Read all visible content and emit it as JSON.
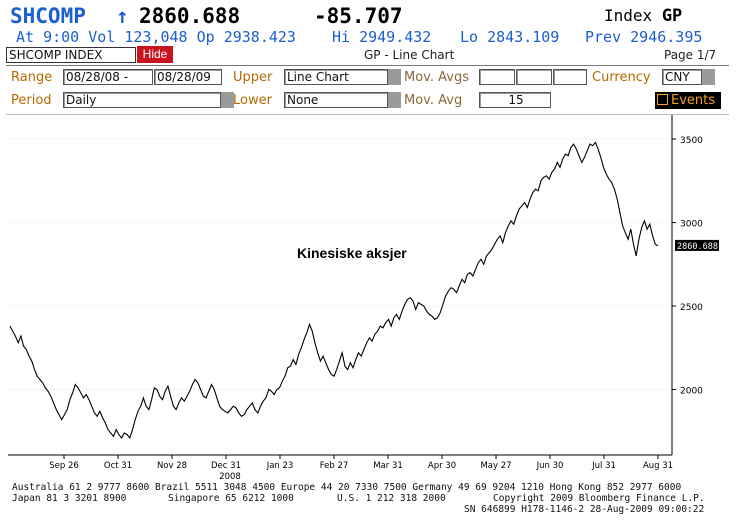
{
  "quote": {
    "ticker": "SHCOMP",
    "arrow": "↑",
    "last": "2860.688",
    "change": "-85.707",
    "index_word": "Index",
    "index_code": "GP",
    "at_label": "At",
    "time": "9:00",
    "vol_label": "Vol",
    "volume": "123,048",
    "op_label": "Op",
    "open": "2938.423",
    "hi_label": "Hi",
    "high": "2949.432",
    "lo_label": "Lo",
    "low": "2843.109",
    "prev_label": "Prev",
    "prev": "2946.395"
  },
  "toolbar": {
    "security": "SHCOMP INDEX",
    "hide_label": "Hide",
    "chart_title": "GP - Line Chart",
    "page": "Page 1/7"
  },
  "settings": {
    "range_label": "Range",
    "range_start": "08/28/08",
    "range_sep": "-",
    "range_end": "08/28/09",
    "upper_label": "Upper",
    "upper_value": "Line Chart",
    "mov_avgs_label": "Mov. Avgs",
    "mov_avgs_values": [
      "",
      "",
      ""
    ],
    "currency_label": "Currency",
    "currency_value": "CNY",
    "period_label": "Period",
    "period_value": "Daily",
    "lower_label": "Lower",
    "lower_value": "None",
    "mov_avg_label": "Mov. Avg",
    "mov_avg_value": "15",
    "events_label": "Events"
  },
  "chart_data": {
    "type": "line",
    "annotation": "Kinesiske aksjer",
    "last_value_tag": "2860.688",
    "ylim": [
      1620,
      3620
    ],
    "yticks": [
      2000,
      2500,
      3000,
      3500
    ],
    "xlabels": [
      "Sep 26",
      "Oct 31",
      "Nov 28",
      "Dec 31",
      "Jan 23",
      "Feb 27",
      "Mar 31",
      "Apr 30",
      "May 27",
      "Jun 30",
      "Jul 31",
      "Aug 31"
    ],
    "year_label": "2008",
    "series": [
      {
        "values": [
          2380,
          2350,
          2320,
          2280,
          2320,
          2260,
          2240,
          2200,
          2170,
          2120,
          2080,
          2060,
          2040,
          2010,
          1990,
          1960,
          1920,
          1880,
          1850,
          1820,
          1850,
          1880,
          1940,
          1980,
          2030,
          2010,
          1980,
          1950,
          1970,
          1940,
          1900,
          1860,
          1840,
          1870,
          1830,
          1800,
          1760,
          1740,
          1720,
          1760,
          1730,
          1710,
          1740,
          1730,
          1710,
          1760,
          1820,
          1870,
          1900,
          1950,
          1900,
          1880,
          1940,
          2010,
          2000,
          1960,
          1940,
          1990,
          2020,
          1960,
          1900,
          1880,
          1920,
          1950,
          1930,
          1960,
          1990,
          2030,
          2060,
          2040,
          2000,
          1960,
          1950,
          1990,
          2030,
          2000,
          1950,
          1900,
          1880,
          1870,
          1860,
          1880,
          1900,
          1890,
          1860,
          1840,
          1850,
          1880,
          1900,
          1920,
          1880,
          1860,
          1900,
          1930,
          1950,
          2000,
          1990,
          1970,
          2000,
          2010,
          2050,
          2080,
          2130,
          2140,
          2180,
          2150,
          2210,
          2250,
          2300,
          2340,
          2390,
          2350,
          2280,
          2220,
          2170,
          2200,
          2160,
          2120,
          2090,
          2080,
          2120,
          2170,
          2220,
          2140,
          2120,
          2160,
          2130,
          2180,
          2220,
          2200,
          2240,
          2280,
          2310,
          2290,
          2330,
          2350,
          2380,
          2370,
          2400,
          2420,
          2380,
          2430,
          2450,
          2420,
          2470,
          2510,
          2540,
          2550,
          2530,
          2480,
          2520,
          2510,
          2500,
          2470,
          2450,
          2440,
          2420,
          2430,
          2460,
          2510,
          2560,
          2590,
          2610,
          2600,
          2580,
          2620,
          2660,
          2640,
          2690,
          2700,
          2680,
          2720,
          2760,
          2780,
          2750,
          2800,
          2820,
          2840,
          2870,
          2900,
          2920,
          2880,
          2940,
          2980,
          3010,
          2990,
          3040,
          3080,
          3100,
          3120,
          3090,
          3140,
          3180,
          3200,
          3190,
          3250,
          3270,
          3280,
          3260,
          3300,
          3320,
          3360,
          3330,
          3380,
          3410,
          3400,
          3450,
          3470,
          3440,
          3400,
          3360,
          3390,
          3430,
          3470,
          3460,
          3480,
          3440,
          3390,
          3330,
          3290,
          3260,
          3240,
          3200,
          3140,
          3060,
          2980,
          2940,
          2900,
          2960,
          2870,
          2800,
          2900,
          2970,
          3010,
          2960,
          2990,
          2920,
          2870,
          2860
        ]
      }
    ]
  },
  "footer": {
    "line1": "Australia 61 2 9777 8600 Brazil 5511 3048 4500 Europe 44 20 7330 7500 Germany 49 69 9204 1210 Hong Kong 852 2977 6000",
    "line2a": "Japan 81 3 3201 8900",
    "line2b": "Singapore 65 6212 1000",
    "line2c": "U.S. 1 212 318 2000",
    "line2d": "Copyright 2009 Bloomberg Finance L.P.",
    "line3": "SN 646899 H178-1146-2 28-Aug-2009 09:00:22"
  },
  "colors": {
    "header_blue": "#1c5fd0",
    "hide_red": "#c8141e",
    "label_orange": "#b46a00",
    "events_bg": "#000000"
  }
}
